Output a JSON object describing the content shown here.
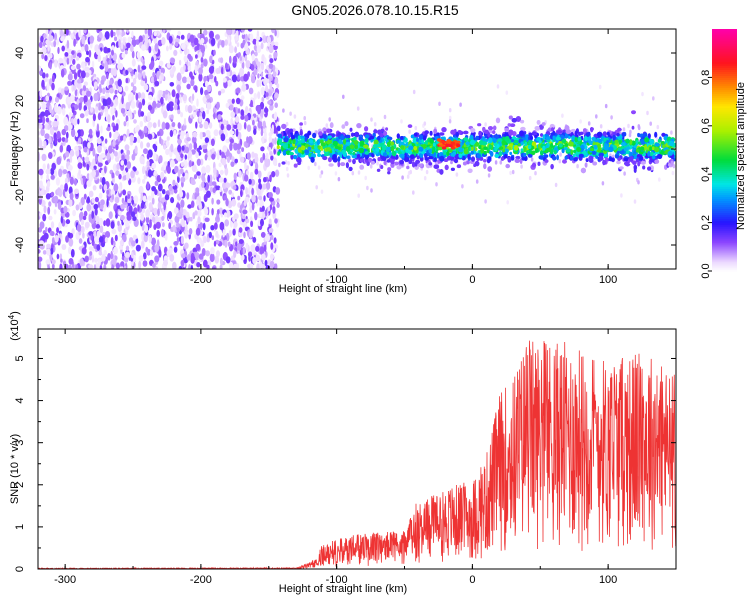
{
  "title": "GN05.2026.078.10.15.R15",
  "chart_data": [
    {
      "type": "heatmap",
      "xlabel": "Height of straight line (km)",
      "ylabel": "Frequency (Hz)",
      "xlim": [
        -320,
        150
      ],
      "ylim": [
        -50,
        50
      ],
      "xticks": [
        -300,
        -200,
        -100,
        0,
        100
      ],
      "yticks": [
        -40,
        -20,
        0,
        20,
        40
      ],
      "colorbar": {
        "label": "Normalized spectral amplitude",
        "range": [
          0,
          1
        ],
        "ticks": [
          "0.0",
          "0.2",
          "0.4",
          "0.6",
          "0.8"
        ],
        "tick_values": [
          0.0,
          0.2,
          0.4,
          0.6,
          0.8
        ]
      },
      "regions": [
        {
          "x_range": [
            -320,
            -143
          ],
          "freq_range": [
            -50,
            50
          ],
          "amplitude_range": [
            0.02,
            0.15
          ],
          "note": "broadband noise"
        },
        {
          "x_range": [
            -143,
            150
          ],
          "freq_center": 1,
          "freq_halfwidth": 8,
          "amplitude_range": [
            0.1,
            0.55
          ]
        },
        {
          "x_range": [
            -25,
            -10
          ],
          "freq_center": 2,
          "amplitude_peak": 0.9
        }
      ]
    },
    {
      "type": "line",
      "xlabel": "Height of straight line (km)",
      "ylabel": "SNR (10 * v/v)",
      "multiplier_label": "(x10",
      "multiplier_exp": "4",
      "multiplier_close": ")",
      "xlim": [
        -320,
        150
      ],
      "ylim": [
        0,
        5.7
      ],
      "xticks": [
        -300,
        -200,
        -100,
        0,
        100
      ],
      "yticks": [
        0,
        1,
        2,
        3,
        4,
        5
      ],
      "series": [
        {
          "color": "#ee3333",
          "envelope": [
            {
              "x": -320,
              "max": 0.02
            },
            {
              "x": -130,
              "max": 0.03
            },
            {
              "x": -120,
              "max": 0.15
            },
            {
              "x": -110,
              "max": 0.6
            },
            {
              "x": -90,
              "max": 0.8
            },
            {
              "x": -65,
              "max": 0.9
            },
            {
              "x": -48,
              "max": 0.9
            },
            {
              "x": -45,
              "max": 1.5
            },
            {
              "x": -30,
              "max": 1.8
            },
            {
              "x": -15,
              "max": 2.0
            },
            {
              "x": 0,
              "max": 2.1
            },
            {
              "x": 10,
              "max": 2.7
            },
            {
              "x": 20,
              "max": 4.2
            },
            {
              "x": 30,
              "max": 4.6
            },
            {
              "x": 40,
              "max": 5.5
            },
            {
              "x": 70,
              "max": 5.4
            },
            {
              "x": 100,
              "max": 5.0
            },
            {
              "x": 130,
              "max": 5.2
            },
            {
              "x": 150,
              "max": 4.6
            }
          ]
        }
      ]
    }
  ]
}
